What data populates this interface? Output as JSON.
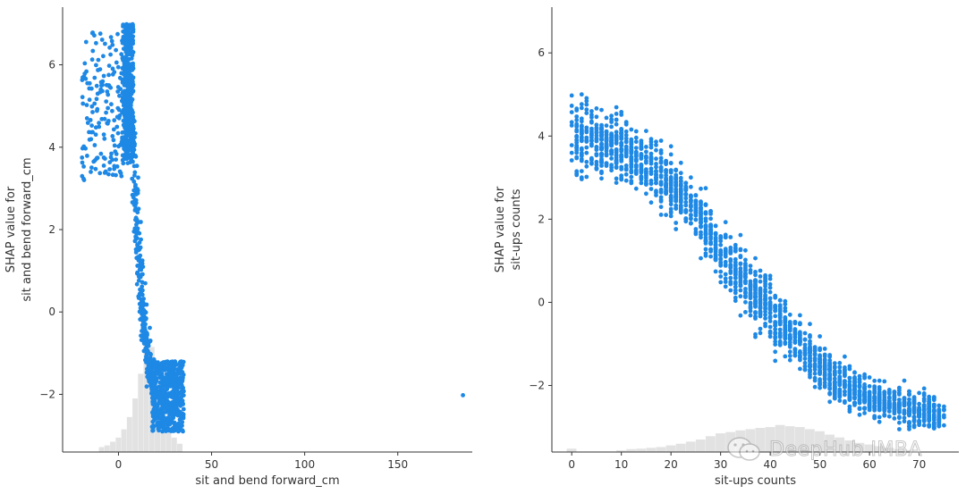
{
  "chart_data": [
    {
      "type": "scatter",
      "title": "",
      "xlabel": "sit and bend forward_cm",
      "ylabel": [
        "SHAP value for",
        "sit and bend forward_cm"
      ],
      "xlim": [
        -30,
        190
      ],
      "ylim": [
        -3.4,
        7.4
      ],
      "xticks": [
        0,
        50,
        100,
        150
      ],
      "yticks": [
        -2,
        0,
        2,
        4,
        6
      ],
      "point_color": "#1e88e5",
      "hist_color": "#e2e2e2",
      "clusters": [
        {
          "x_range": [
            -20,
            2
          ],
          "y_range": [
            3.2,
            6.8
          ],
          "count": 160
        },
        {
          "x_range": [
            2,
            8
          ],
          "y_range": [
            3.6,
            7.0
          ],
          "count": 380
        },
        {
          "x_range": [
            18,
            35
          ],
          "y_range": [
            -2.9,
            -1.2
          ],
          "count": 520
        }
      ],
      "curve": [
        [
          5,
          5.2
        ],
        [
          8,
          4.0
        ],
        [
          9,
          3.0
        ],
        [
          10,
          2.2
        ],
        [
          11,
          1.4
        ],
        [
          12,
          0.6
        ],
        [
          13,
          0.0
        ],
        [
          14,
          -0.5
        ],
        [
          16,
          -1.2
        ],
        [
          18,
          -1.7
        ],
        [
          20,
          -2.0
        ]
      ],
      "curve_count": 420,
      "curve_spread": 0.35,
      "outliers": [
        [
          185,
          -2.02
        ]
      ],
      "histogram": [
        {
          "x": -9,
          "y": -3.28
        },
        {
          "x": -6,
          "y": -3.24
        },
        {
          "x": -3,
          "y": -3.15
        },
        {
          "x": 0,
          "y": -3.05
        },
        {
          "x": 3,
          "y": -2.85
        },
        {
          "x": 6,
          "y": -2.55
        },
        {
          "x": 9,
          "y": -2.1
        },
        {
          "x": 12,
          "y": -1.5
        },
        {
          "x": 15,
          "y": -0.55
        },
        {
          "x": 18,
          "y": -0.85
        },
        {
          "x": 21,
          "y": -1.6
        },
        {
          "x": 24,
          "y": -2.35
        },
        {
          "x": 27,
          "y": -2.8
        },
        {
          "x": 30,
          "y": -3.05
        },
        {
          "x": 33,
          "y": -3.2
        }
      ],
      "hist_bin_width": 3,
      "seed": 11
    },
    {
      "type": "scatter",
      "title": "",
      "xlabel": "sit-ups counts",
      "ylabel": [
        "SHAP value for",
        "sit-ups counts"
      ],
      "xlim": [
        -4,
        78
      ],
      "ylim": [
        -3.6,
        7.1
      ],
      "xticks": [
        0,
        10,
        20,
        30,
        40,
        50,
        60,
        70
      ],
      "yticks": [
        -2,
        0,
        2,
        4,
        6
      ],
      "point_color": "#1e88e5",
      "hist_color": "#e2e2e2",
      "trend": [
        [
          0,
          4.0
        ],
        [
          5,
          3.9
        ],
        [
          10,
          3.7
        ],
        [
          15,
          3.3
        ],
        [
          20,
          2.8
        ],
        [
          25,
          2.2
        ],
        [
          30,
          1.2
        ],
        [
          35,
          0.5
        ],
        [
          40,
          -0.2
        ],
        [
          45,
          -0.9
        ],
        [
          50,
          -1.6
        ],
        [
          55,
          -2.0
        ],
        [
          60,
          -2.3
        ],
        [
          65,
          -2.5
        ],
        [
          70,
          -2.6
        ],
        [
          74,
          -2.7
        ]
      ],
      "trend_spread": [
        [
          0,
          0.75
        ],
        [
          10,
          0.65
        ],
        [
          20,
          0.6
        ],
        [
          30,
          0.55
        ],
        [
          40,
          0.55
        ],
        [
          50,
          0.45
        ],
        [
          60,
          0.4
        ],
        [
          70,
          0.3
        ]
      ],
      "x_points": 2000,
      "histogram": [
        {
          "x": 0,
          "y": -3.52
        },
        {
          "x": 10,
          "y": -3.56
        },
        {
          "x": 12,
          "y": -3.53
        },
        {
          "x": 14,
          "y": -3.52
        },
        {
          "x": 16,
          "y": -3.5
        },
        {
          "x": 18,
          "y": -3.48
        },
        {
          "x": 20,
          "y": -3.44
        },
        {
          "x": 22,
          "y": -3.4
        },
        {
          "x": 24,
          "y": -3.35
        },
        {
          "x": 26,
          "y": -3.3
        },
        {
          "x": 28,
          "y": -3.22
        },
        {
          "x": 30,
          "y": -3.15
        },
        {
          "x": 32,
          "y": -3.12
        },
        {
          "x": 34,
          "y": -3.08
        },
        {
          "x": 36,
          "y": -3.05
        },
        {
          "x": 38,
          "y": -3.02
        },
        {
          "x": 40,
          "y": -3.0
        },
        {
          "x": 42,
          "y": -2.95
        },
        {
          "x": 44,
          "y": -2.98
        },
        {
          "x": 46,
          "y": -3.0
        },
        {
          "x": 48,
          "y": -3.05
        },
        {
          "x": 50,
          "y": -3.1
        },
        {
          "x": 52,
          "y": -3.18
        },
        {
          "x": 54,
          "y": -3.25
        },
        {
          "x": 56,
          "y": -3.32
        },
        {
          "x": 58,
          "y": -3.38
        },
        {
          "x": 60,
          "y": -3.42
        },
        {
          "x": 62,
          "y": -3.46
        },
        {
          "x": 64,
          "y": -3.5
        },
        {
          "x": 66,
          "y": -3.53
        },
        {
          "x": 68,
          "y": -3.55
        }
      ],
      "hist_bin_width": 2,
      "seed": 29
    }
  ],
  "watermark": {
    "text": "DeepHub IMBA",
    "icon": "wechat-icon"
  }
}
